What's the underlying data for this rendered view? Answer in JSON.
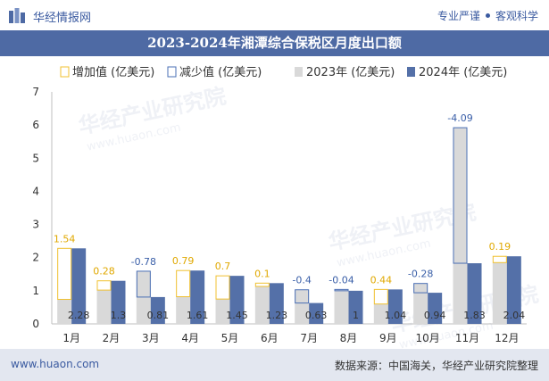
{
  "header": {
    "brand": "华经情报网",
    "tagline_left": "专业严谨",
    "tagline_right": "客观科学",
    "title": "2023-2024年湘潭综合保税区月度出口额"
  },
  "watermark": {
    "text_cn": "华经产业研究院",
    "text_url": "www.huaon.com"
  },
  "footer": {
    "site": "www.huaon.com",
    "source": "数据来源：中国海关，华经产业研究院整理"
  },
  "colors": {
    "title_bar": "#4e6aa4",
    "bar_2023": "#d9d9d9",
    "bar_2024": "#5470a8",
    "increase": "#f0c030",
    "decrease": "#4a6fb5",
    "footer_bg": "#e3e7f0"
  },
  "chart_data": {
    "type": "bar",
    "categories": [
      "1月",
      "2月",
      "3月",
      "4月",
      "5月",
      "6月",
      "7月",
      "8月",
      "9月",
      "10月",
      "11月",
      "12月"
    ],
    "series": [
      {
        "name": "2023年 (亿美元)",
        "values": [
          0.74,
          1.02,
          1.59,
          0.82,
          0.75,
          1.13,
          1.03,
          1.04,
          0.6,
          1.22,
          5.92,
          1.85
        ]
      },
      {
        "name": "2024年 (亿美元)",
        "values": [
          2.28,
          1.3,
          0.81,
          1.61,
          1.45,
          1.23,
          0.63,
          1,
          1.04,
          0.94,
          1.83,
          2.04
        ]
      }
    ],
    "change": {
      "labels": [
        "1.54",
        "0.28",
        "-0.78",
        "0.79",
        "0.7",
        "0.1",
        "-0.4",
        "-0.04",
        "0.44",
        "-0.28",
        "-4.09",
        "0.19"
      ]
    },
    "legend": [
      "增加值 (亿美元)",
      "减少值 (亿美元)",
      "2023年 (亿美元)",
      "2024年 (亿美元)"
    ],
    "legend_position": "top",
    "ylim": [
      0,
      7
    ],
    "yticks": [
      0,
      1,
      2,
      3,
      4,
      5,
      6,
      7
    ],
    "grid": false
  }
}
